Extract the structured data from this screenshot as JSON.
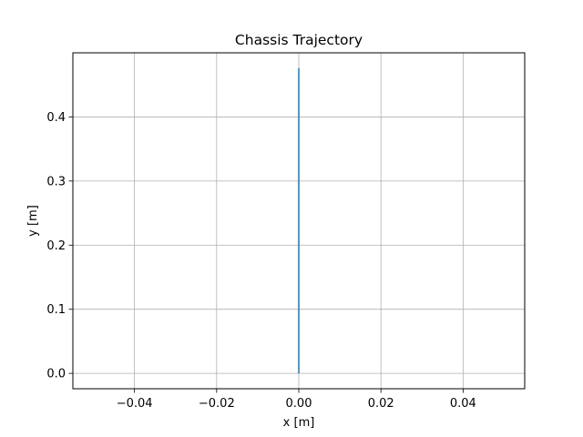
{
  "chart_data": {
    "type": "line",
    "title": "Chassis Trajectory",
    "xlabel": "x [m]",
    "ylabel": "y [m]",
    "xlim": [
      -0.055,
      0.055
    ],
    "ylim": [
      -0.024,
      0.5
    ],
    "x_ticks": [
      -0.04,
      -0.02,
      0.0,
      0.02,
      0.04
    ],
    "x_tick_labels": [
      "−0.04",
      "−0.02",
      "0.00",
      "0.02",
      "0.04"
    ],
    "y_ticks": [
      0.0,
      0.1,
      0.2,
      0.3,
      0.4
    ],
    "y_tick_labels": [
      "0.0",
      "0.1",
      "0.2",
      "0.3",
      "0.4"
    ],
    "grid": true,
    "series": [
      {
        "color": "#1f77b4",
        "x": [
          0.0,
          0.0
        ],
        "y": [
          0.0,
          0.476
        ]
      }
    ]
  }
}
